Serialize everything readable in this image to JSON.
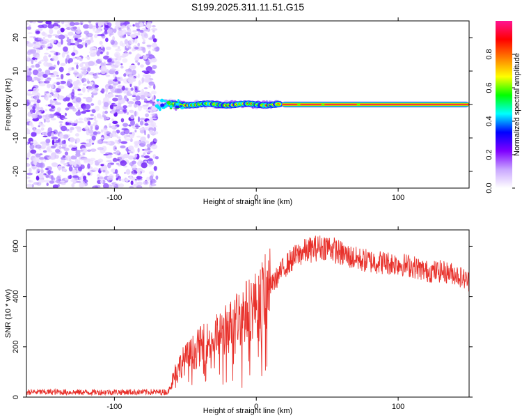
{
  "title": "S199.2025.311.11.51.G15",
  "chart_data": [
    {
      "type": "heatmap",
      "xlabel": "Height of straight line (km)",
      "ylabel": "Frequency (Hz)",
      "xlim": [
        -162,
        150
      ],
      "ylim": [
        -25,
        25
      ],
      "xticks": [
        -100,
        0,
        100
      ],
      "yticks": [
        -20,
        -10,
        0,
        10,
        20
      ],
      "xtick_labels": [
        "-100",
        "0",
        "100"
      ],
      "ytick_labels": [
        "-20",
        "-10",
        "0",
        "10",
        "20"
      ],
      "noise_region": {
        "x": [
          -162,
          -70
        ],
        "y": [
          -25,
          25
        ],
        "description_level": "low"
      },
      "blob_region": {
        "x": [
          -70,
          18
        ]
      },
      "band": {
        "x_start": 18,
        "x_end": 150,
        "frequency": 0.0
      },
      "hot_spots_x": [
        -53,
        -40,
        -30,
        -20,
        -12,
        -6,
        0,
        4,
        10,
        15,
        30,
        47,
        72
      ],
      "colorbar": {
        "label": "Normalized spectral amplitude",
        "range": [
          0,
          1
        ],
        "ticks": [
          0.0,
          0.2,
          0.4,
          0.6,
          0.8
        ],
        "tick_labels": [
          "0.0",
          "0.2",
          "0.4",
          "0.6",
          "0.8"
        ],
        "colors": [
          "#ffffff",
          "#c9a7ff",
          "#7f00ff",
          "#0000ff",
          "#00ffff",
          "#00ff00",
          "#ffff00",
          "#ff7f00",
          "#ff0000",
          "#ff1493"
        ]
      }
    },
    {
      "type": "line",
      "xlabel": "Height of straight line (km)",
      "ylabel": "SNR (10 * v/v)",
      "xlim": [
        -162,
        150
      ],
      "ylim": [
        0,
        665
      ],
      "xticks": [
        -100,
        0,
        100
      ],
      "yticks": [
        0,
        200,
        400,
        600
      ],
      "xtick_labels": [
        "-100",
        "0",
        "100"
      ],
      "ytick_labels": [
        "0",
        "200",
        "400",
        "600"
      ],
      "color": "#e8302a",
      "series": [
        {
          "name": "SNR",
          "x": [
            -162,
            -140,
            -120,
            -100,
            -80,
            -62,
            -58,
            -52,
            -45,
            -40,
            -30,
            -20,
            -10,
            0,
            10,
            20,
            30,
            40,
            50,
            60,
            70,
            80,
            90,
            100,
            110,
            120,
            130,
            140,
            150
          ],
          "y": [
            20,
            20,
            19,
            20,
            20,
            20,
            90,
            140,
            175,
            200,
            230,
            275,
            330,
            370,
            440,
            520,
            570,
            590,
            600,
            570,
            550,
            540,
            535,
            530,
            520,
            500,
            500,
            490,
            460
          ]
        }
      ]
    }
  ]
}
